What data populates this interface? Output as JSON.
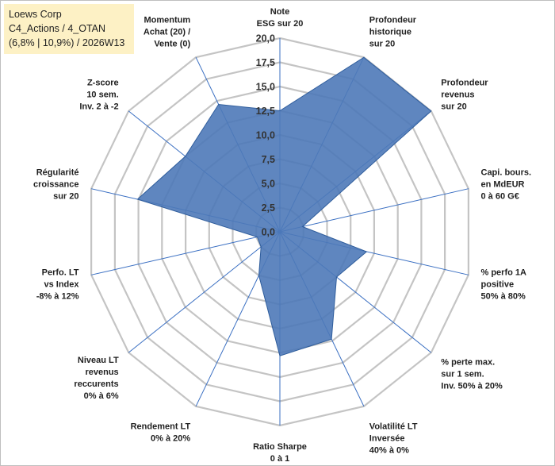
{
  "info": {
    "line1": "Loews Corp",
    "line2": "C4_Actions / 4_OTAN",
    "line3": "(6,8% | 10,9%) / 2026W13"
  },
  "colors": {
    "fill": "#4e79b8",
    "stroke": "#2f5d9c",
    "grid": "#c4c4c4",
    "spoke": "#3a6fc2"
  },
  "chart_data": {
    "type": "radar",
    "r_range": [
      0,
      20
    ],
    "grid": true,
    "tick_labels": [
      "0,0",
      "2,5",
      "5,0",
      "7,5",
      "10,0",
      "12,5",
      "15,0",
      "17,5",
      "20,0"
    ],
    "axes": [
      {
        "label": [
          "Note",
          "ESG sur 20"
        ],
        "value": 12.5
      },
      {
        "label": [
          "Profondeur",
          "historique",
          "sur 20"
        ],
        "value": 20
      },
      {
        "label": [
          "Profondeur",
          "revenus",
          "sur 20"
        ],
        "value": 20
      },
      {
        "label": [
          "Capi. bours.",
          "en MdEUR",
          "0 à 60 G€"
        ],
        "value": 2.4
      },
      {
        "label": [
          "% perfo 1A",
          "positive",
          "50% à 80%"
        ],
        "value": 9.2
      },
      {
        "label": [
          "% perte max.",
          "sur 1 sem.",
          "Inv. 50% à 20%"
        ],
        "value": 7.5
      },
      {
        "label": [
          "Volatilité LT",
          "Inversée",
          "40% à 0%"
        ],
        "value": 12.3
      },
      {
        "label": [
          "Ratio Sharpe",
          "0 à 1"
        ],
        "value": 12.8
      },
      {
        "label": [
          "Rendement LT",
          "0% à 20%"
        ],
        "value": 5.0
      },
      {
        "label": [
          "Niveau LT",
          "revenus",
          "reccurents",
          "0% à 6%"
        ],
        "value": 2.5
      },
      {
        "label": [
          "Perfo. LT",
          "vs Index",
          "-8% à 12%"
        ],
        "value": 2.4
      },
      {
        "label": [
          "Régularité",
          "croissance",
          "sur 20"
        ],
        "value": 15.1
      },
      {
        "label": [
          "Z-score",
          "10 sem.",
          "Inv. 2 à -2"
        ],
        "value": 12.5
      },
      {
        "label": [
          "Momentum",
          "Achat (20) /",
          "Vente (0)"
        ],
        "value": 14.6
      }
    ]
  }
}
